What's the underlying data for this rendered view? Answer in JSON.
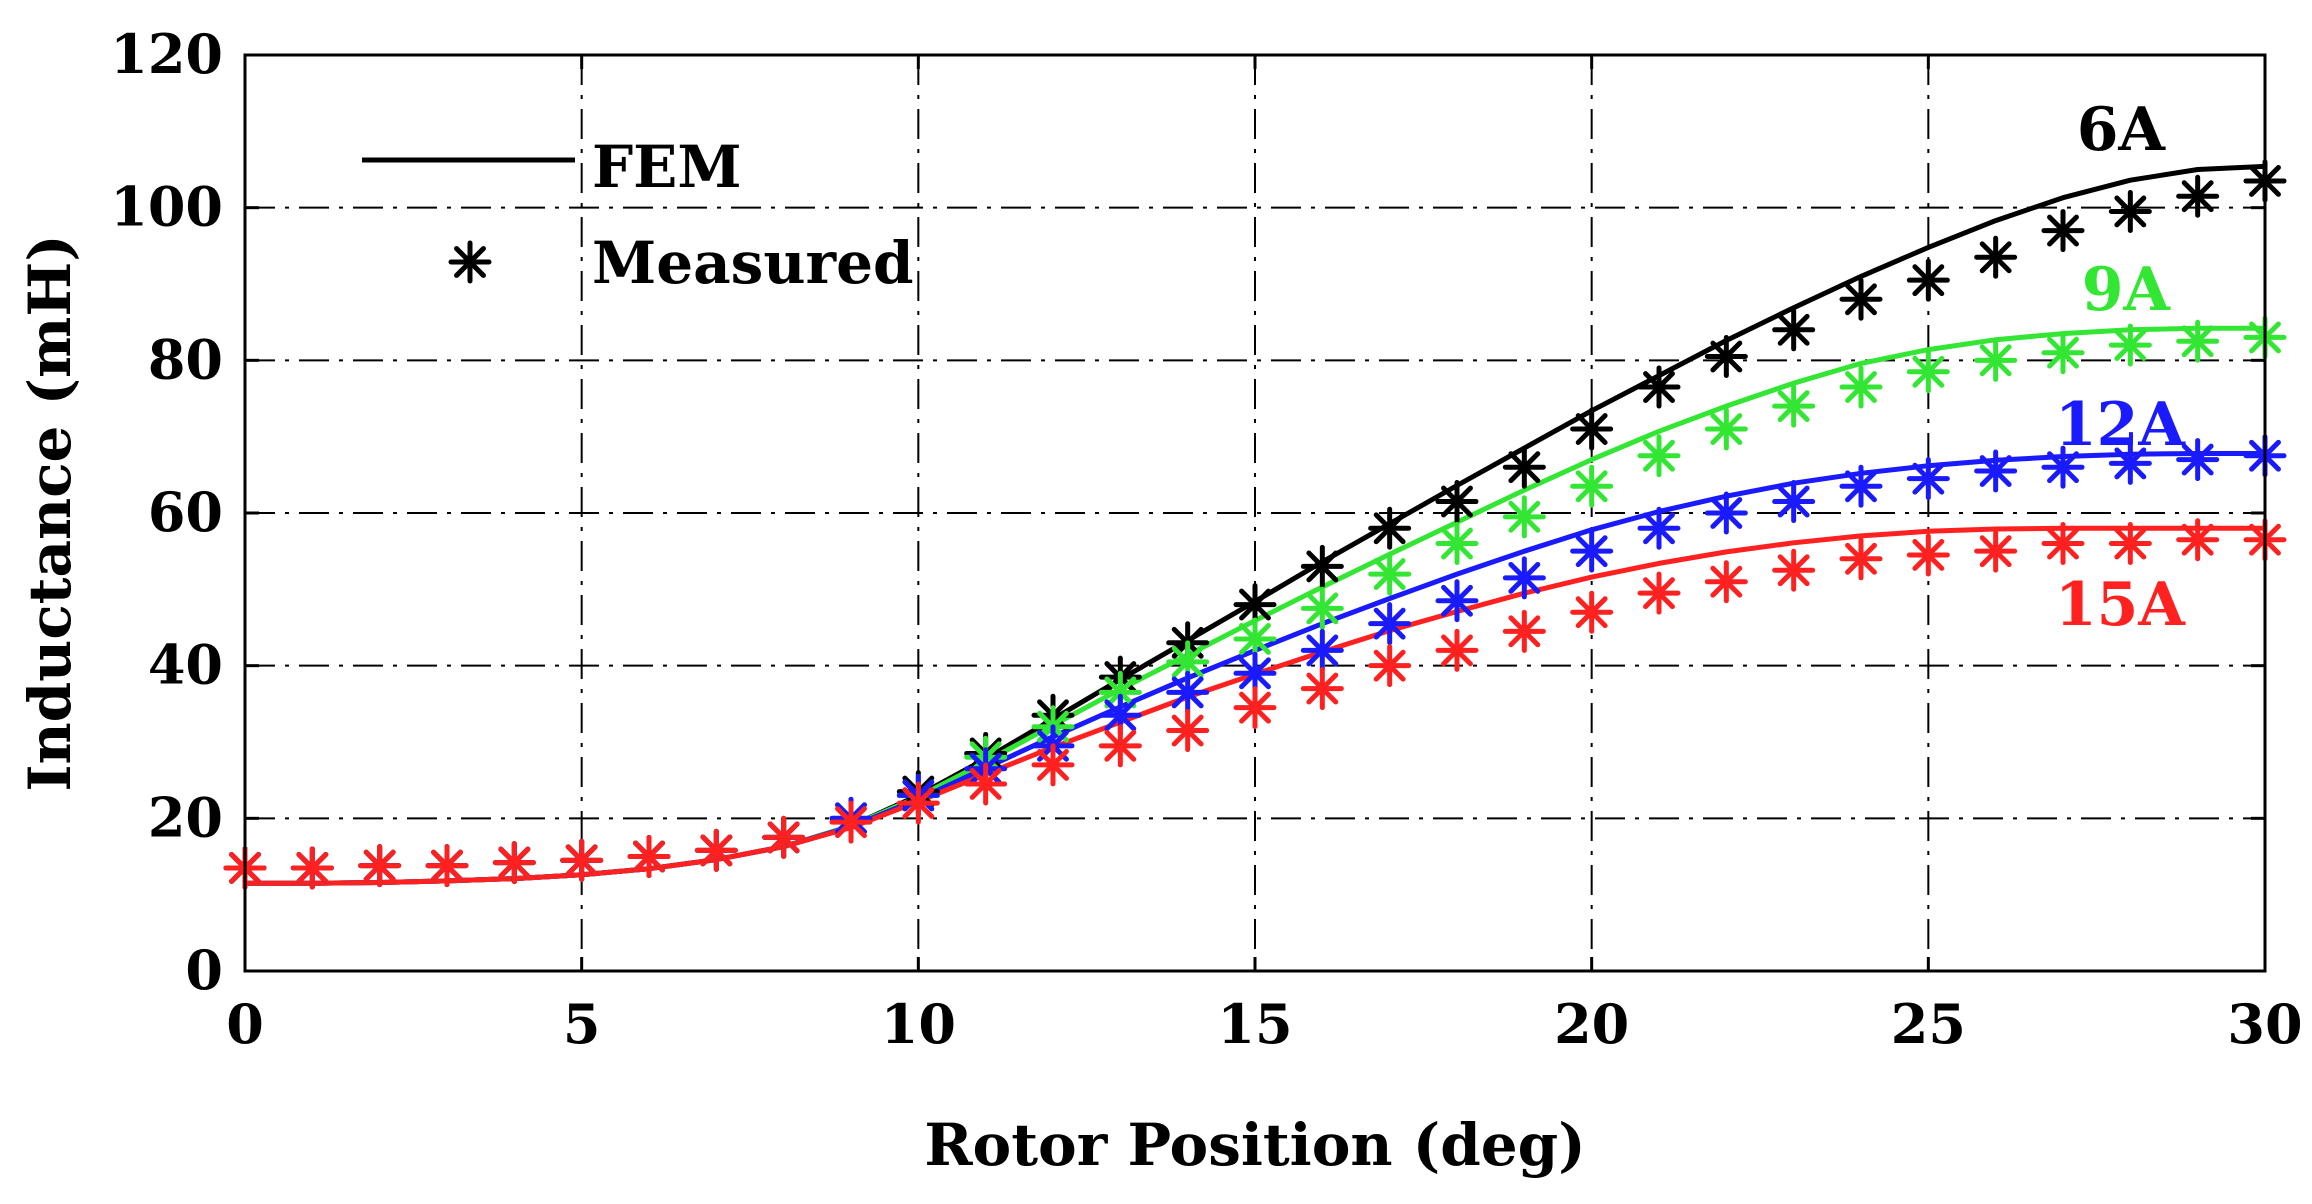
{
  "chart_data": {
    "type": "line",
    "title": "",
    "xlabel": "Rotor Position (deg)",
    "ylabel": "Inductance (mH)",
    "xlim": [
      0,
      30
    ],
    "ylim": [
      0,
      120
    ],
    "xticks": [
      0,
      5,
      10,
      15,
      20,
      25,
      30
    ],
    "yticks": [
      0,
      20,
      40,
      60,
      80,
      100,
      120
    ],
    "grid": true,
    "legend": {
      "placement": "top-left",
      "entries": [
        {
          "label": "FEM",
          "marker": "line"
        },
        {
          "label": "Measured",
          "marker": "asterisk"
        }
      ]
    },
    "x": [
      0,
      1,
      2,
      3,
      4,
      5,
      6,
      7,
      8,
      9,
      10,
      11,
      12,
      13,
      14,
      15,
      16,
      17,
      18,
      19,
      20,
      21,
      22,
      23,
      24,
      25,
      26,
      27,
      28,
      29,
      30
    ],
    "series": [
      {
        "name": "6A",
        "color": "#000000",
        "fem": [
          11.5,
          11.5,
          11.6,
          11.8,
          12.1,
          12.6,
          13.4,
          14.6,
          16.3,
          19.0,
          23.0,
          27.8,
          33.0,
          38.2,
          43.3,
          48.4,
          53.6,
          58.6,
          63.6,
          68.5,
          73.4,
          78.0,
          82.6,
          86.9,
          91.0,
          94.8,
          98.3,
          101.3,
          103.6,
          105.0,
          105.4
        ],
        "measured": [
          13.5,
          13.5,
          13.8,
          13.8,
          14.2,
          14.5,
          15.0,
          15.8,
          17.5,
          20.0,
          23.5,
          28.5,
          33.5,
          38.5,
          43.0,
          48.0,
          53.0,
          58.0,
          61.5,
          66.0,
          71.0,
          76.5,
          80.5,
          84.0,
          88.0,
          90.5,
          93.5,
          97.0,
          99.5,
          101.5,
          103.5
        ]
      },
      {
        "name": "9A",
        "color": "#33e633",
        "fem": [
          11.5,
          11.5,
          11.6,
          11.8,
          12.1,
          12.6,
          13.4,
          14.6,
          16.3,
          19.0,
          22.8,
          27.4,
          32.2,
          36.9,
          41.4,
          45.9,
          50.3,
          54.6,
          58.8,
          63.0,
          67.0,
          70.7,
          74.0,
          77.0,
          79.6,
          81.4,
          82.7,
          83.5,
          84.0,
          84.2,
          84.2
        ],
        "measured": [
          13.5,
          13.5,
          13.8,
          13.8,
          14.2,
          14.5,
          15.0,
          15.8,
          17.5,
          20.0,
          23.0,
          28.0,
          32.0,
          36.5,
          40.5,
          43.5,
          47.5,
          52.0,
          56.0,
          59.5,
          63.5,
          67.5,
          71.0,
          74.0,
          76.5,
          78.5,
          80.0,
          81.0,
          82.0,
          82.5,
          83.0
        ]
      },
      {
        "name": "12A",
        "color": "#1a1aff",
        "fem": [
          11.5,
          11.5,
          11.6,
          11.8,
          12.1,
          12.6,
          13.4,
          14.6,
          16.3,
          18.9,
          22.5,
          26.6,
          30.7,
          34.6,
          38.4,
          42.0,
          45.5,
          48.8,
          52.0,
          55.0,
          57.8,
          60.2,
          62.2,
          63.9,
          65.2,
          66.2,
          66.9,
          67.4,
          67.7,
          67.8,
          67.8
        ],
        "measured": [
          13.5,
          13.5,
          13.8,
          13.8,
          14.2,
          14.5,
          15.0,
          15.8,
          17.5,
          20.0,
          23.0,
          26.5,
          29.5,
          33.5,
          36.5,
          39.0,
          42.0,
          45.5,
          48.5,
          51.5,
          55.0,
          58.0,
          60.0,
          61.5,
          63.5,
          64.5,
          65.5,
          66.0,
          66.5,
          67.0,
          67.5
        ]
      },
      {
        "name": "15A",
        "color": "#ff2020",
        "fem": [
          11.5,
          11.5,
          11.6,
          11.8,
          12.1,
          12.6,
          13.4,
          14.6,
          16.3,
          18.8,
          22.2,
          25.8,
          29.3,
          32.6,
          35.9,
          38.9,
          41.8,
          44.6,
          47.1,
          49.5,
          51.6,
          53.4,
          54.9,
          56.1,
          57.0,
          57.6,
          57.9,
          58.0,
          58.0,
          58.0,
          58.0
        ],
        "measured": [
          13.5,
          13.5,
          13.8,
          13.8,
          14.2,
          14.5,
          15.0,
          15.8,
          17.5,
          19.5,
          22.0,
          24.5,
          27.0,
          29.5,
          31.5,
          34.5,
          37.0,
          40.0,
          42.0,
          44.5,
          47.0,
          49.5,
          51.0,
          52.5,
          54.0,
          54.5,
          55.0,
          56.0,
          56.0,
          56.5,
          56.5
        ]
      }
    ]
  }
}
